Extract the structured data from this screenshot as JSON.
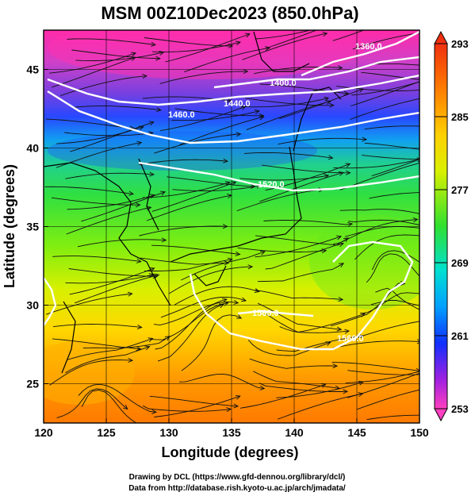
{
  "title": "MSM 00Z10Dec2023 (850.0hPa)",
  "xlabel": "Longitude (degrees)",
  "ylabel": "Latitude  (degrees)",
  "x_ticks": [
    "120",
    "125",
    "130",
    "135",
    "140",
    "145",
    "150"
  ],
  "y_ticks": [
    "25",
    "30",
    "35",
    "40",
    "45"
  ],
  "colorbar": {
    "ticks": [
      "293",
      "285",
      "277",
      "269",
      "261",
      "253"
    ],
    "min": 253,
    "max": 293
  },
  "contour_labels": [
    "1360.0",
    "1400.0",
    "1440.0",
    "1460.0",
    "1520.0",
    "1560.0",
    "1560.0"
  ],
  "credits": {
    "line1": "Drawing by DCL (https://www.gfd-dennou.org/library/dcl/)",
    "line2": "Data from http://database.rish.kyoto-u.ac.jp/arch/jmadata/"
  },
  "chart_data": {
    "type": "heatmap",
    "title": "MSM 00Z10Dec2023 (850.0hPa)",
    "xlabel": "Longitude (degrees)",
    "ylabel": "Latitude  (degrees)",
    "xlim": [
      120,
      150
    ],
    "ylim": [
      22.5,
      47.5
    ],
    "colorbar_range": [
      253,
      293
    ],
    "contour_levels_shown": [
      1360.0,
      1400.0,
      1440.0,
      1460.0,
      1520.0,
      1560.0
    ],
    "overlays": [
      "geopotential height contours (white)",
      "wind streamlines (black)",
      "coastlines"
    ],
    "grid": true,
    "colormap": [
      "#e040c0",
      "#3060ff",
      "#00d0ff",
      "#30e030",
      "#d8f000",
      "#ff9000",
      "#f04010"
    ]
  }
}
